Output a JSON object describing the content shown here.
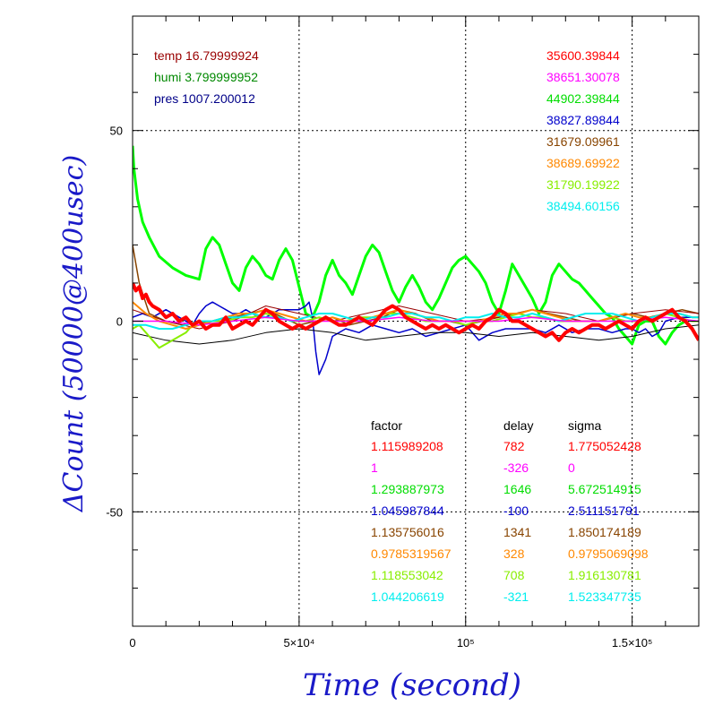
{
  "chart_data": {
    "type": "line",
    "xlabel": "Time (second)",
    "ylabel": "ΔCount (50000@400usec)",
    "xlim": [
      0,
      170000
    ],
    "ylim": [
      -80,
      80
    ],
    "x_ticks": [
      {
        "value": 0,
        "label": "0"
      },
      {
        "value": 50000,
        "label": "5×10⁴"
      },
      {
        "value": 100000,
        "label": "10⁵"
      },
      {
        "value": 150000,
        "label": "1.5×10⁵"
      }
    ],
    "y_ticks": [
      {
        "value": 50,
        "label": "50"
      },
      {
        "value": 0,
        "label": "0"
      },
      {
        "value": -50,
        "label": "-50"
      }
    ],
    "grid": true,
    "env": [
      {
        "text": "temp 16.79999924",
        "color": "#990000"
      },
      {
        "text": "humi 3.799999952",
        "color": "#008800"
      },
      {
        "text": "pres 1007.200012",
        "color": "#000088"
      }
    ],
    "means": [
      {
        "text": "35600.39844",
        "color": "#ff0000"
      },
      {
        "text": "38651.30078",
        "color": "#ff00ff"
      },
      {
        "text": "44902.39844",
        "color": "#00dd00"
      },
      {
        "text": "38827.89844",
        "color": "#0000cc"
      },
      {
        "text": "31679.09961",
        "color": "#884400"
      },
      {
        "text": "38689.69922",
        "color": "#ff8800"
      },
      {
        "text": "31790.19922",
        "color": "#88ee00"
      },
      {
        "text": "38494.60156",
        "color": "#00eeee"
      }
    ],
    "table": {
      "headers": [
        "factor",
        "delay",
        "sigma"
      ],
      "rows": [
        {
          "factor": "1.115989208",
          "delay": "782",
          "sigma": "1.775052428",
          "color": "#ff0000"
        },
        {
          "factor": "1",
          "delay": "-326",
          "sigma": "0",
          "color": "#ff00ff"
        },
        {
          "factor": "1.293887973",
          "delay": "1646",
          "sigma": "5.672514915",
          "color": "#00dd00"
        },
        {
          "factor": "1.045987844",
          "delay": "-100",
          "sigma": "2.511151791",
          "color": "#0000cc"
        },
        {
          "factor": "1.135756016",
          "delay": "1341",
          "sigma": "1.850174189",
          "color": "#884400"
        },
        {
          "factor": "0.9785319567",
          "delay": "328",
          "sigma": "0.9795069098",
          "color": "#ff8800"
        },
        {
          "factor": "1.118553042",
          "delay": "708",
          "sigma": "1.916130781",
          "color": "#88ee00"
        },
        {
          "factor": "1.044206619",
          "delay": "-321",
          "sigma": "1.523347735",
          "color": "#00eeee"
        }
      ]
    },
    "series": [
      {
        "color": "#00ff00",
        "width": 3,
        "x": [
          0,
          400,
          1500,
          3000,
          5000,
          8000,
          12000,
          16000,
          20000,
          22000,
          24000,
          26000,
          28000,
          30000,
          32000,
          34000,
          36000,
          38000,
          40000,
          42000,
          44000,
          46000,
          48000,
          50000,
          52000,
          54000,
          56000,
          58000,
          60000,
          62000,
          64000,
          66000,
          68000,
          70000,
          72000,
          74000,
          76000,
          78000,
          80000,
          82000,
          84000,
          86000,
          88000,
          90000,
          92000,
          94000,
          96000,
          98000,
          100000,
          102000,
          104000,
          106000,
          108000,
          110000,
          112000,
          114000,
          116000,
          118000,
          120000,
          122000,
          124000,
          126000,
          128000,
          130000,
          132000,
          134000,
          136000,
          138000,
          140000,
          142000,
          144000,
          146000,
          148000,
          150000,
          152000,
          154000,
          156000,
          158000,
          160000,
          162000,
          164000,
          166000,
          168000,
          170000
        ],
        "y": [
          46,
          40,
          32,
          26,
          22,
          17,
          14,
          12,
          11,
          19,
          22,
          20,
          15,
          10,
          8,
          14,
          17,
          15,
          12,
          11,
          16,
          19,
          16,
          9,
          2,
          1,
          5,
          12,
          16,
          12,
          10,
          7,
          12,
          17,
          20,
          18,
          13,
          8,
          5,
          9,
          12,
          9,
          5,
          3,
          6,
          10,
          14,
          16,
          17,
          15,
          13,
          10,
          5,
          2,
          8,
          15,
          12,
          9,
          6,
          2,
          5,
          12,
          15,
          13,
          11,
          10,
          8,
          6,
          4,
          2,
          1,
          -2,
          -4,
          -6,
          -1,
          0,
          0,
          -4,
          -6,
          -3,
          -1,
          0,
          -2,
          -5
        ]
      },
      {
        "color": "#0000cc",
        "width": 1.5,
        "x": [
          0,
          3000,
          6000,
          10000,
          14000,
          18000,
          20000,
          22000,
          24000,
          26000,
          28000,
          30000,
          32000,
          34000,
          36000,
          38000,
          40000,
          42000,
          44000,
          46000,
          48000,
          50000,
          52000,
          53000,
          54000,
          55000,
          56000,
          58000,
          60000,
          64000,
          68000,
          72000,
          76000,
          80000,
          84000,
          88000,
          92000,
          96000,
          100000,
          104000,
          108000,
          112000,
          116000,
          120000,
          124000,
          128000,
          132000,
          136000,
          140000,
          144000,
          148000,
          150000,
          152000,
          154000,
          156000,
          158000,
          160000,
          164000,
          168000,
          170000
        ],
        "y": [
          1,
          2,
          1,
          3,
          1,
          -1,
          2,
          4,
          5,
          4,
          3,
          2,
          2,
          3,
          2,
          1,
          1,
          2,
          3,
          3,
          3,
          3,
          4,
          5,
          1,
          -8,
          -14,
          -10,
          -4,
          -2,
          -3,
          -1,
          -2,
          -3,
          -2,
          -4,
          -3,
          -2,
          -1,
          -5,
          -3,
          -2,
          -2,
          -2,
          -3,
          -1,
          -3,
          -2,
          -2,
          -3,
          -2,
          -2,
          -3,
          -2,
          -4,
          -3,
          0,
          1,
          1,
          1
        ]
      },
      {
        "color": "#884400",
        "width": 1.5,
        "x": [
          0,
          2000,
          5000,
          10000,
          15000,
          20000,
          25000,
          30000,
          35000,
          40000,
          45000,
          50000,
          55000,
          60000,
          65000,
          70000,
          75000,
          80000,
          85000,
          90000,
          95000,
          100000,
          105000,
          110000,
          115000,
          120000,
          125000,
          130000,
          135000,
          140000,
          145000,
          150000,
          155000,
          160000,
          165000,
          170000
        ],
        "y": [
          20,
          10,
          2,
          0,
          -1,
          0,
          -1,
          1,
          2,
          3,
          1,
          -1,
          0,
          1,
          -1,
          0,
          1,
          3,
          2,
          0,
          0,
          -1,
          0,
          1,
          2,
          3,
          2,
          1,
          0,
          0,
          1,
          2,
          1,
          2,
          3,
          2
        ]
      },
      {
        "color": "#000000",
        "width": 1,
        "x": [
          0,
          10000,
          20000,
          30000,
          40000,
          50000,
          60000,
          70000,
          80000,
          90000,
          100000,
          110000,
          120000,
          130000,
          140000,
          150000,
          160000,
          170000
        ],
        "y": [
          -3,
          -5,
          -6,
          -5,
          -3,
          -2,
          -3,
          -5,
          -4,
          -3,
          -3,
          -4,
          -3,
          -4,
          -5,
          -4,
          -2,
          -1
        ]
      },
      {
        "color": "#990000",
        "width": 1,
        "x": [
          0,
          10000,
          20000,
          30000,
          40000,
          50000,
          60000,
          70000,
          80000,
          90000,
          100000,
          110000,
          120000,
          130000,
          140000,
          150000,
          160000,
          170000
        ],
        "y": [
          3,
          0,
          -2,
          0,
          4,
          2,
          0,
          2,
          4,
          2,
          0,
          1,
          3,
          2,
          0,
          2,
          3,
          2
        ]
      },
      {
        "color": "#88ee00",
        "width": 2,
        "x": [
          0,
          2000,
          4000,
          6000,
          8000,
          10000,
          12000,
          14000,
          16000,
          18000,
          20000,
          24000,
          28000,
          32000,
          36000,
          40000,
          44000,
          48000,
          52000,
          56000,
          60000,
          64000,
          68000,
          72000,
          76000,
          80000,
          84000,
          88000,
          92000,
          96000,
          100000,
          104000,
          108000,
          112000,
          116000,
          120000,
          124000,
          128000,
          132000,
          136000,
          140000,
          144000,
          148000,
          152000,
          156000,
          160000,
          164000,
          168000,
          170000
        ],
        "y": [
          -2,
          -1,
          -3,
          -5,
          -7,
          -6,
          -5,
          -4,
          -3,
          -1,
          0,
          0,
          0,
          1,
          1,
          2,
          1,
          0,
          0,
          1,
          0,
          0,
          1,
          1,
          2,
          2,
          1,
          0,
          0,
          0,
          -1,
          0,
          0,
          1,
          2,
          1,
          1,
          0,
          0,
          0,
          0,
          1,
          0,
          0,
          1,
          2,
          1,
          0,
          0
        ]
      },
      {
        "color": "#ff8800",
        "width": 2,
        "x": [
          0,
          4000,
          8000,
          12000,
          16000,
          20000,
          24000,
          28000,
          32000,
          36000,
          40000,
          44000,
          48000,
          52000,
          56000,
          60000,
          64000,
          68000,
          72000,
          76000,
          80000,
          84000,
          88000,
          92000,
          96000,
          100000,
          104000,
          108000,
          112000,
          116000,
          120000,
          124000,
          128000,
          132000,
          136000,
          140000,
          144000,
          148000,
          152000,
          156000,
          160000,
          164000,
          168000,
          170000
        ],
        "y": [
          5,
          2,
          0,
          -1,
          -2,
          -1,
          0,
          1,
          2,
          2,
          3,
          2,
          1,
          0,
          0,
          1,
          0,
          0,
          1,
          2,
          3,
          2,
          1,
          0,
          0,
          0,
          0,
          1,
          2,
          2,
          3,
          2,
          1,
          0,
          0,
          0,
          1,
          2,
          1,
          1,
          2,
          2,
          1,
          1
        ]
      },
      {
        "color": "#00eeee",
        "width": 2,
        "x": [
          0,
          4000,
          8000,
          12000,
          16000,
          20000,
          24000,
          28000,
          32000,
          36000,
          40000,
          44000,
          48000,
          52000,
          56000,
          60000,
          64000,
          68000,
          72000,
          76000,
          80000,
          84000,
          88000,
          92000,
          96000,
          100000,
          104000,
          108000,
          112000,
          116000,
          120000,
          124000,
          128000,
          132000,
          136000,
          140000,
          144000,
          148000,
          152000,
          156000,
          160000,
          164000,
          168000,
          170000
        ],
        "y": [
          -1,
          -1,
          -2,
          -2,
          -1,
          0,
          0,
          1,
          1,
          2,
          1,
          1,
          0,
          1,
          2,
          2,
          1,
          0,
          1,
          1,
          2,
          2,
          1,
          1,
          0,
          1,
          1,
          2,
          1,
          1,
          2,
          1,
          0,
          1,
          2,
          2,
          2,
          1,
          0,
          1,
          2,
          2,
          1,
          1
        ]
      },
      {
        "color": "#ff00ff",
        "width": 1.5,
        "x": [
          0,
          10000,
          20000,
          30000,
          40000,
          50000,
          60000,
          70000,
          80000,
          90000,
          100000,
          110000,
          120000,
          130000,
          140000,
          150000,
          160000,
          170000
        ],
        "y": [
          0,
          0,
          -1,
          0,
          1,
          0,
          0,
          0,
          1,
          0,
          0,
          0,
          1,
          0,
          0,
          0,
          1,
          0
        ]
      },
      {
        "color": "#ff0000",
        "width": 4,
        "x": [
          0,
          1000,
          2000,
          3000,
          4000,
          5000,
          6000,
          8000,
          10000,
          12000,
          14000,
          16000,
          18000,
          20000,
          22000,
          24000,
          26000,
          28000,
          30000,
          32000,
          34000,
          36000,
          38000,
          40000,
          42000,
          44000,
          46000,
          48000,
          50000,
          52000,
          54000,
          56000,
          58000,
          60000,
          62000,
          64000,
          66000,
          68000,
          70000,
          72000,
          74000,
          76000,
          78000,
          80000,
          82000,
          84000,
          86000,
          88000,
          90000,
          92000,
          94000,
          96000,
          98000,
          100000,
          102000,
          104000,
          106000,
          108000,
          110000,
          112000,
          114000,
          116000,
          118000,
          120000,
          122000,
          124000,
          126000,
          128000,
          130000,
          132000,
          134000,
          136000,
          138000,
          140000,
          142000,
          144000,
          146000,
          148000,
          150000,
          152000,
          154000,
          156000,
          158000,
          160000,
          162000,
          164000,
          166000,
          168000,
          170000
        ],
        "y": [
          10,
          8,
          9,
          6,
          7,
          5,
          4,
          3,
          1,
          2,
          0,
          1,
          -1,
          0,
          -2,
          -1,
          -1,
          1,
          -2,
          -1,
          0,
          -1,
          1,
          3,
          2,
          0,
          -1,
          -2,
          -1,
          -2,
          -1,
          0,
          1,
          0,
          -1,
          -1,
          0,
          1,
          0,
          -1,
          1,
          3,
          4,
          3,
          1,
          0,
          -1,
          -2,
          -1,
          -2,
          -1,
          -2,
          -3,
          -2,
          -1,
          -2,
          0,
          1,
          3,
          2,
          0,
          0,
          -1,
          -2,
          -3,
          -4,
          -3,
          -5,
          -3,
          -2,
          -3,
          -2,
          -1,
          -1,
          -2,
          -1,
          0,
          -1,
          -2,
          0,
          1,
          0,
          1,
          2,
          3,
          1,
          0,
          -2,
          -5
        ]
      }
    ]
  }
}
